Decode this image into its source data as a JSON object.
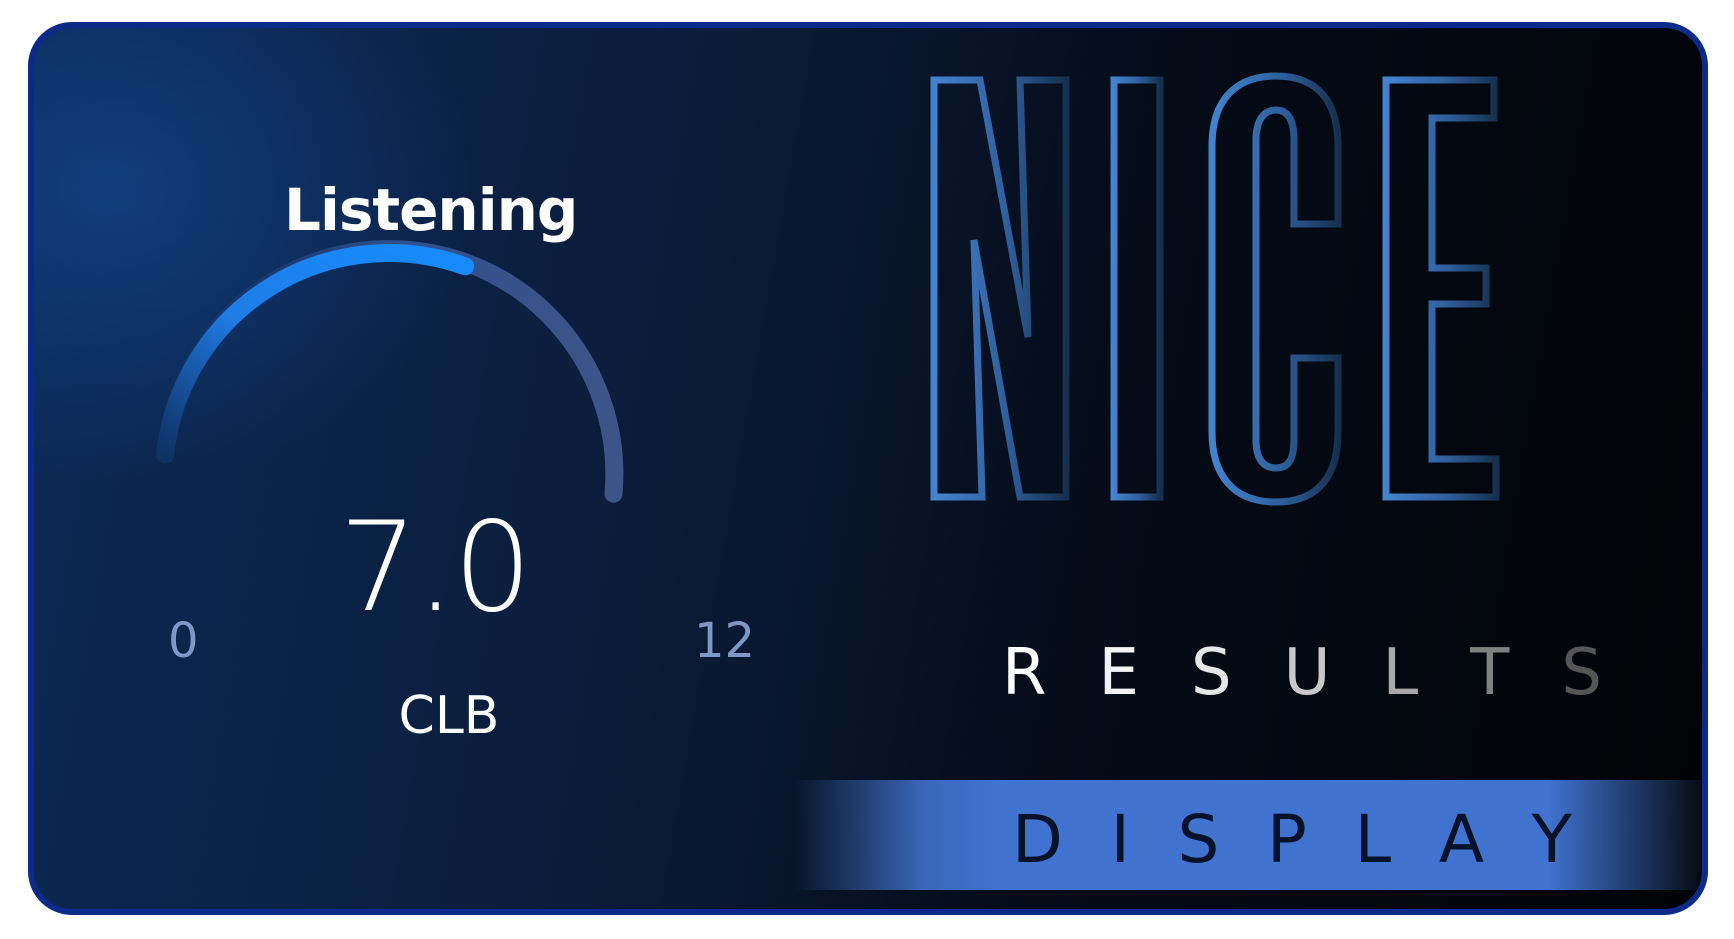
{
  "gauge": {
    "title": "Listening",
    "value": "7.0",
    "unit": "CLB",
    "min_label": "0",
    "max_label": "12",
    "fill_fraction": 0.583
  },
  "headline": {
    "word": "NICE",
    "subtitle_letters": [
      "R",
      "E",
      "S",
      "U",
      "L",
      "T",
      "S"
    ],
    "banner_letters": [
      "D",
      "I",
      "S",
      "P",
      "L",
      "A",
      "Y"
    ]
  },
  "colors": {
    "arc_active": "#168bff",
    "arc_track": "#3a4f82",
    "nice_outline": "#3f78c2",
    "banner": "#3f73cf"
  }
}
